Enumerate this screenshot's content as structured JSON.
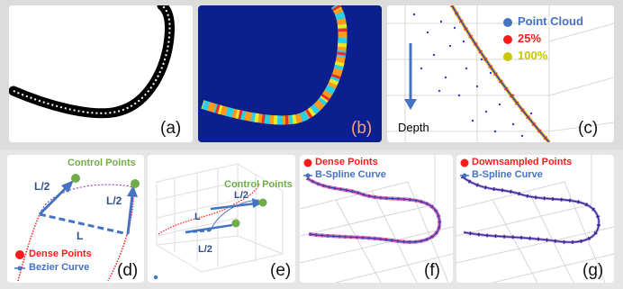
{
  "panels": {
    "a": {
      "label": "(a)"
    },
    "b": {
      "label": "(b)",
      "label_color": "#f0a080"
    },
    "c": {
      "label": "(c)",
      "depth_label": "Depth",
      "legend": [
        {
          "text": "Point Cloud",
          "color": "#4472c4",
          "icon": "blue-dot-icon"
        },
        {
          "text": "25%",
          "color": "#ff1a1a",
          "icon": "red-dot-icon"
        },
        {
          "text": "100%",
          "color": "#c8c800",
          "icon": "yellow-dot-icon"
        }
      ]
    },
    "d": {
      "label": "(d)",
      "control_points": "Control Points",
      "half_left": "L/2",
      "half_right": "L/2",
      "chord": "L",
      "legend_dense": "Dense Points",
      "legend_curve": "Bezier Curve"
    },
    "e": {
      "label": "(e)",
      "control_points": "Control Points",
      "half_top": "L/2",
      "chord": "L",
      "half_bottom": "L/2"
    },
    "f": {
      "label": "(f)",
      "legend_points": "Dense Points",
      "legend_curve": "B-Spline Curve"
    },
    "g": {
      "label": "(g)",
      "legend_points": "Downsampled Points",
      "legend_curve": "B-Spline Curve"
    }
  },
  "colors": {
    "accent_blue": "#4472c4",
    "dense_red": "#ff1a1a",
    "control_green": "#70ad47",
    "curve_navy": "#2f2f8f",
    "spline_purple": "#7030a0"
  }
}
